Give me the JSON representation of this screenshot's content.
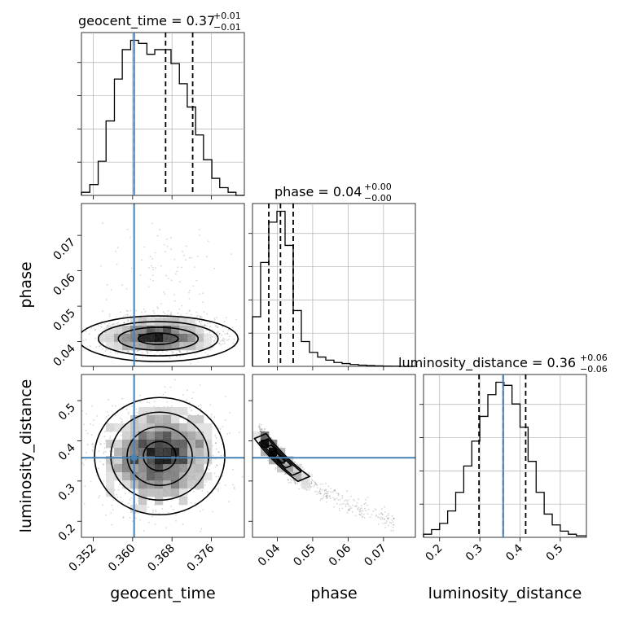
{
  "figure": {
    "type": "corner-plot"
  },
  "colors": {
    "truth": "#4682b4",
    "hist": "#000000",
    "density": "#000000",
    "quantile": "#000000",
    "grid": "#b0b0b0"
  },
  "chart_data": [
    {
      "type": "histogram",
      "panel": "geocent_time-marginal",
      "title": {
        "main": "geocent_time = 0.37",
        "sup": "+0.01",
        "sub": "−0.01"
      },
      "xlim": [
        0.3496,
        0.3827
      ],
      "ylim": [
        0,
        1
      ],
      "grid": true,
      "bins": [
        0.3496,
        0.3513,
        0.353,
        0.3546,
        0.3563,
        0.3579,
        0.3596,
        0.3612,
        0.3629,
        0.3645,
        0.3662,
        0.3678,
        0.3695,
        0.3711,
        0.3728,
        0.3744,
        0.3761,
        0.3777,
        0.3794,
        0.381,
        0.3827
      ],
      "counts": [
        0.02,
        0.07,
        0.22,
        0.48,
        0.75,
        0.94,
        1.0,
        0.98,
        0.91,
        0.94,
        0.94,
        0.85,
        0.72,
        0.57,
        0.39,
        0.23,
        0.11,
        0.05,
        0.02,
        0.0
      ],
      "quantiles": [
        0.3603,
        0.3667,
        0.3722
      ],
      "truth": 0.3603
    },
    {
      "type": "histogram",
      "panel": "phase-marginal",
      "title": {
        "main": "phase = 0.04",
        "sup": "+0.00",
        "sub": "−0.00"
      },
      "xlim": [
        0.033,
        0.079
      ],
      "ylim": [
        0,
        1
      ],
      "grid": true,
      "bins": [
        0.033,
        0.0353,
        0.0376,
        0.0399,
        0.0422,
        0.0445,
        0.0468,
        0.0491,
        0.0514,
        0.0537,
        0.056,
        0.0583,
        0.0606,
        0.0629,
        0.0652,
        0.0675,
        0.0698,
        0.0721,
        0.0744,
        0.0767,
        0.079
      ],
      "counts": [
        0.32,
        0.67,
        0.93,
        1.0,
        0.78,
        0.36,
        0.16,
        0.09,
        0.06,
        0.04,
        0.025,
        0.018,
        0.012,
        0.008,
        0.005,
        0.003,
        0.002,
        0.001,
        0.0,
        0.0
      ],
      "quantiles": [
        0.0376,
        0.0409,
        0.0445
      ]
    },
    {
      "type": "histogram",
      "panel": "luminosity_distance-marginal",
      "title": {
        "main": "luminosity_distance = 0.36",
        "sup": "+0.06",
        "sub": "−0.06"
      },
      "xlim": [
        0.16,
        0.565
      ],
      "ylim": [
        0,
        1
      ],
      "grid": true,
      "bins": [
        0.16,
        0.18,
        0.2,
        0.22,
        0.24,
        0.26,
        0.28,
        0.3,
        0.32,
        0.34,
        0.36,
        0.38,
        0.4,
        0.42,
        0.44,
        0.46,
        0.48,
        0.5,
        0.52,
        0.54,
        0.565
      ],
      "counts": [
        0.02,
        0.05,
        0.09,
        0.17,
        0.29,
        0.46,
        0.62,
        0.78,
        0.92,
        1.0,
        0.98,
        0.86,
        0.71,
        0.49,
        0.29,
        0.15,
        0.08,
        0.04,
        0.02,
        0.01
      ],
      "quantiles": [
        0.298,
        0.358,
        0.414
      ],
      "truth": 0.358
    },
    {
      "type": "scatter",
      "panel": "geocent_time-vs-phase",
      "x_param": "geocent_time",
      "y_param": "phase",
      "xlim": [
        0.3496,
        0.3827
      ],
      "ylim": [
        0.033,
        0.079
      ],
      "center": [
        0.3652,
        0.0408
      ],
      "spread": [
        0.0055,
        0.003
      ],
      "n_points": 2200,
      "contour_levels": 4,
      "grid": false,
      "truth_x": 0.3603
    },
    {
      "type": "scatter",
      "panel": "geocent_time-vs-luminosity_distance",
      "x_param": "geocent_time",
      "y_param": "luminosity_distance",
      "xlim": [
        0.3496,
        0.3827
      ],
      "ylim": [
        0.16,
        0.565
      ],
      "center": [
        0.3655,
        0.362
      ],
      "spread": [
        0.0055,
        0.058
      ],
      "n_points": 2200,
      "contour_levels": 4,
      "grid": false,
      "truth": [
        0.3603,
        0.358
      ]
    },
    {
      "type": "scatter",
      "panel": "phase-vs-luminosity_distance",
      "x_param": "phase",
      "y_param": "luminosity_distance",
      "xlim": [
        0.033,
        0.079
      ],
      "ylim": [
        0.16,
        0.565
      ],
      "curve": "luminosity_distance ~ 0.0145 / phase",
      "n_points": 1800,
      "contour_levels": 4,
      "grid": false,
      "truth_y": 0.358
    }
  ],
  "axes": {
    "geocent_time": {
      "label": "geocent_time",
      "ticks": [
        "0.352",
        "0.360",
        "0.368",
        "0.376"
      ],
      "tick_values": [
        0.352,
        0.36,
        0.368,
        0.376
      ]
    },
    "phase": {
      "label": "phase",
      "ticks_x": [
        "0.04",
        "0.05",
        "0.06",
        "0.07"
      ],
      "ticks_y": [
        "0.04",
        "0.05",
        "0.06",
        "0.07"
      ],
      "tick_values": [
        0.04,
        0.05,
        0.06,
        0.07
      ]
    },
    "luminosity_distance": {
      "label": "luminosity_distance",
      "ticks_x": [
        "0.2",
        "0.3",
        "0.4",
        "0.5"
      ],
      "ticks_y": [
        "0.2",
        "0.3",
        "0.4",
        "0.5"
      ],
      "tick_values": [
        0.2,
        0.3,
        0.4,
        0.5
      ]
    }
  }
}
